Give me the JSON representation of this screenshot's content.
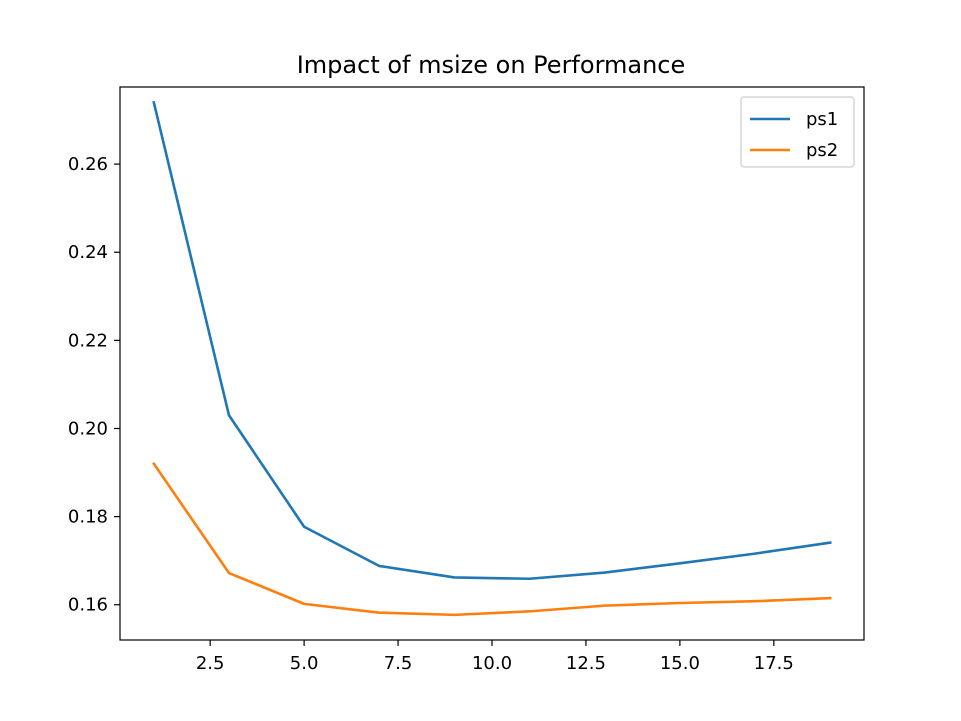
{
  "chart_data": {
    "type": "line",
    "title": "Impact of msize on Performance",
    "xlabel": "",
    "ylabel": "",
    "x": [
      1,
      3,
      5,
      7,
      9,
      11,
      13,
      15,
      17,
      19
    ],
    "xlim": [
      0.1,
      19.9
    ],
    "ylim": [
      0.152,
      0.2775
    ],
    "xticks": [
      2.5,
      5.0,
      7.5,
      10.0,
      12.5,
      15.0,
      17.5
    ],
    "xtick_labels": [
      "2.5",
      "5.0",
      "7.5",
      "10.0",
      "12.5",
      "15.0",
      "17.5"
    ],
    "yticks": [
      0.16,
      0.18,
      0.2,
      0.22,
      0.24,
      0.26
    ],
    "ytick_labels": [
      "0.16",
      "0.18",
      "0.20",
      "0.22",
      "0.24",
      "0.26"
    ],
    "grid": false,
    "legend_position": "top-right",
    "series": [
      {
        "name": "ps1",
        "color": "#1f77b4",
        "values": [
          0.274,
          0.203,
          0.1777,
          0.1688,
          0.1662,
          0.1659,
          0.1673,
          0.1694,
          0.1716,
          0.1741
        ]
      },
      {
        "name": "ps2",
        "color": "#ff7f0e",
        "values": [
          0.192,
          0.1672,
          0.1602,
          0.1582,
          0.1577,
          0.1585,
          0.1598,
          0.1604,
          0.1608,
          0.1615
        ]
      }
    ]
  }
}
